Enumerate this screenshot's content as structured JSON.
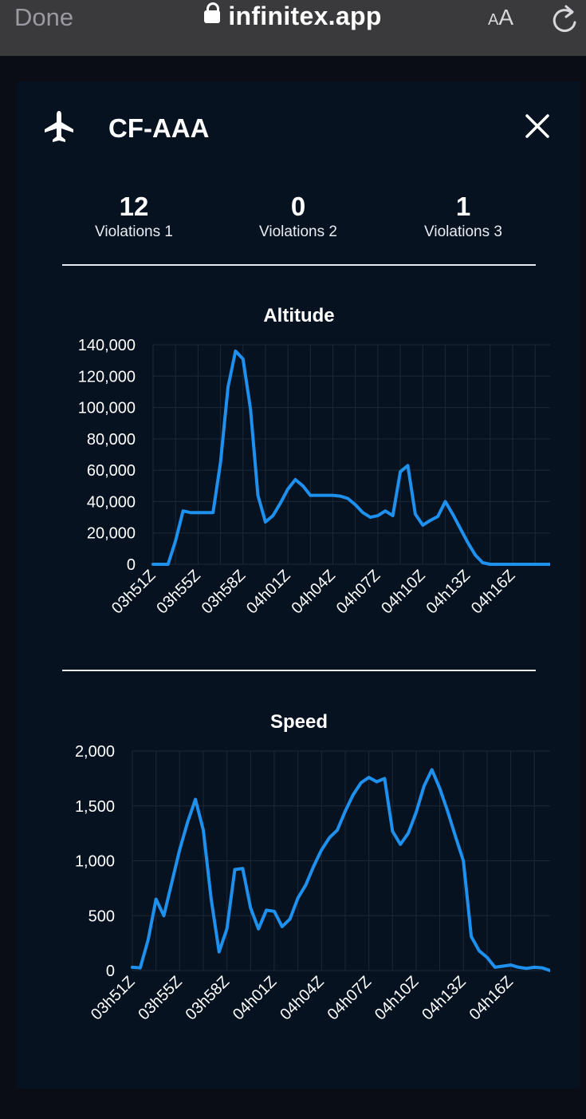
{
  "browser": {
    "done_label": "Done",
    "url": "infinitex.app",
    "text_size_label_big": "A",
    "text_size_label_small": "A",
    "icons": [
      "lock-icon",
      "text-size-icon",
      "reload-icon"
    ]
  },
  "modal": {
    "registration": "CF-AAA",
    "icons": [
      "airplane-icon",
      "close-icon"
    ],
    "stats": [
      {
        "value": "12",
        "label": "Violations 1"
      },
      {
        "value": "0",
        "label": "Violations 2"
      },
      {
        "value": "1",
        "label": "Violations 3"
      }
    ],
    "colors": {
      "line": "#1e90ee",
      "background": "#071220",
      "text": "#ffffff"
    }
  },
  "chart_data": [
    {
      "type": "line",
      "title": "Altitude",
      "ylim": [
        0,
        140000
      ],
      "yticks": [
        0,
        20000,
        40000,
        60000,
        80000,
        100000,
        120000,
        140000
      ],
      "ytick_labels": [
        "0",
        "20,000",
        "40,000",
        "60,000",
        "80,000",
        "100,000",
        "120,000",
        "140,000"
      ],
      "xlim": [
        0,
        26.5
      ],
      "xticks": [
        0,
        3,
        6,
        9,
        12,
        15,
        18,
        21,
        24
      ],
      "xtick_labels": [
        "03h51Z",
        "03h55Z",
        "03h58Z",
        "04h01Z",
        "04h04Z",
        "04h07Z",
        "04h10Z",
        "04h13Z",
        "04h16Z"
      ],
      "grid": true,
      "series": [
        {
          "x": [
            0,
            1,
            1.5,
            2,
            2.5,
            3,
            3.5,
            4,
            4.5,
            5,
            5.5,
            6,
            6.5,
            7,
            7.5,
            8,
            8.5,
            9,
            9.5,
            10,
            10.5,
            11,
            11.5,
            12,
            12.5,
            13,
            13.5,
            14,
            14.5,
            15,
            15.5,
            16,
            16.5,
            17,
            17.5,
            18,
            18.5,
            19,
            19.5,
            20,
            20.5,
            21,
            21.5,
            22,
            22.5,
            23,
            23.5,
            24,
            24.5,
            25,
            25.5,
            26,
            26.5
          ],
          "y": [
            0,
            0,
            15000,
            34000,
            33000,
            33000,
            33000,
            33000,
            65000,
            113000,
            136000,
            131000,
            99000,
            44000,
            27000,
            31000,
            39000,
            48000,
            54000,
            50000,
            44000,
            44000,
            44000,
            44000,
            43500,
            42000,
            38000,
            33000,
            30000,
            31000,
            34000,
            31000,
            59000,
            63000,
            32000,
            25000,
            28000,
            30500,
            40000,
            32000,
            23000,
            14000,
            6000,
            1000,
            0,
            0,
            0,
            0,
            0,
            0,
            0,
            0,
            0
          ]
        }
      ]
    },
    {
      "type": "line",
      "title": "Speed",
      "ylim": [
        0,
        2000
      ],
      "yticks": [
        0,
        500,
        1000,
        1500,
        2000
      ],
      "ytick_labels": [
        "0",
        "500",
        "1,000",
        "1,500",
        "2,000"
      ],
      "xlim": [
        0,
        26.5
      ],
      "xticks": [
        0,
        3,
        6,
        9,
        12,
        15,
        18,
        21,
        24
      ],
      "xtick_labels": [
        "03h51Z",
        "03h55Z",
        "03h58Z",
        "04h01Z",
        "04h04Z",
        "04h07Z",
        "04h10Z",
        "04h13Z",
        "04h16Z"
      ],
      "grid": true,
      "series": [
        {
          "x": [
            0,
            0.5,
            1,
            1.5,
            2,
            2.5,
            3,
            3.5,
            4,
            4.5,
            5,
            5.5,
            6,
            6.5,
            7,
            7.5,
            8,
            8.5,
            9,
            9.5,
            10,
            10.5,
            11,
            11.5,
            12,
            12.5,
            13,
            13.5,
            14,
            14.5,
            15,
            15.5,
            16,
            16.5,
            17,
            17.5,
            18,
            18.5,
            19,
            19.5,
            20,
            20.5,
            21,
            21.5,
            22,
            22.5,
            23,
            23.5,
            24,
            24.5,
            25,
            25.5,
            26,
            26.5
          ],
          "y": [
            30,
            25,
            280,
            650,
            500,
            800,
            1100,
            1350,
            1560,
            1280,
            650,
            170,
            380,
            920,
            930,
            570,
            380,
            550,
            540,
            400,
            470,
            660,
            780,
            950,
            1100,
            1210,
            1280,
            1450,
            1600,
            1710,
            1760,
            1720,
            1750,
            1270,
            1150,
            1250,
            1440,
            1680,
            1830,
            1660,
            1450,
            1220,
            1000,
            310,
            180,
            120,
            30,
            40,
            50,
            30,
            20,
            30,
            25,
            0
          ]
        }
      ]
    }
  ]
}
